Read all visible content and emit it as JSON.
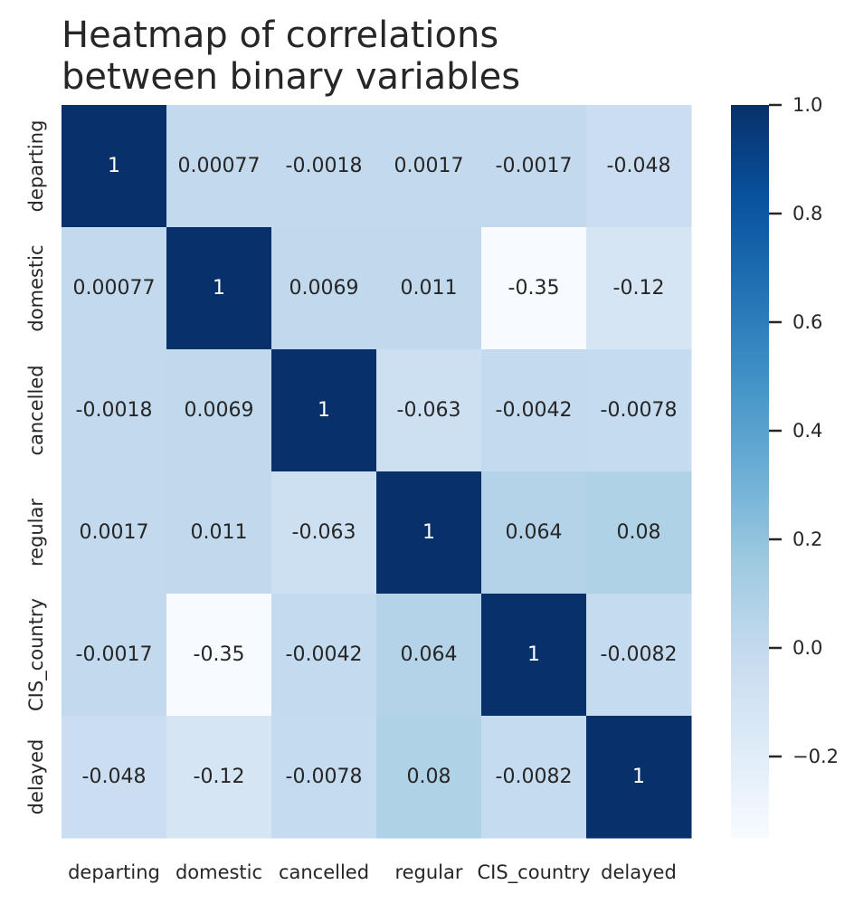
{
  "chart_data": {
    "type": "heatmap",
    "title": "Heatmap of correlations\nbetween binary variables",
    "x_labels": [
      "departing",
      "domestic",
      "cancelled",
      "regular",
      "CIS_country",
      "delayed"
    ],
    "y_labels": [
      "departing",
      "domestic",
      "cancelled",
      "regular",
      "CIS_country",
      "delayed"
    ],
    "values": [
      [
        1,
        0.00077,
        -0.0018,
        0.0017,
        -0.0017,
        -0.048
      ],
      [
        0.00077,
        1,
        0.0069,
        0.011,
        -0.35,
        -0.12
      ],
      [
        -0.0018,
        0.0069,
        1,
        -0.063,
        -0.0042,
        -0.0078
      ],
      [
        0.0017,
        0.011,
        -0.063,
        1,
        0.064,
        0.08
      ],
      [
        -0.0017,
        -0.35,
        -0.0042,
        0.064,
        1,
        -0.0082
      ],
      [
        -0.048,
        -0.12,
        -0.0078,
        0.08,
        -0.0082,
        1
      ]
    ],
    "cell_labels": [
      [
        "1",
        "0.00077",
        "-0.0018",
        "0.0017",
        "-0.0017",
        "-0.048"
      ],
      [
        "0.00077",
        "1",
        "0.0069",
        "0.011",
        "-0.35",
        "-0.12"
      ],
      [
        "-0.0018",
        "0.0069",
        "1",
        "-0.063",
        "-0.0042",
        "-0.0078"
      ],
      [
        "0.0017",
        "0.011",
        "-0.063",
        "1",
        "0.064",
        "0.08"
      ],
      [
        "-0.0017",
        "-0.35",
        "-0.0042",
        "0.064",
        "1",
        "-0.0082"
      ],
      [
        "-0.048",
        "-0.12",
        "-0.0078",
        "0.08",
        "-0.0082",
        "1"
      ]
    ],
    "colorbar": {
      "vmin": -0.35,
      "vmax": 1.0,
      "ticks": [
        1.0,
        0.8,
        0.6,
        0.4,
        0.2,
        0.0,
        -0.2
      ],
      "tick_labels": [
        "1.0",
        "0.8",
        "0.6",
        "0.4",
        "0.2",
        "0.0",
        "−0.2"
      ],
      "colormap": "Blues",
      "stops": [
        "#f7fbff",
        "#deebf7",
        "#c6dbef",
        "#9ecae1",
        "#6baed6",
        "#4292c6",
        "#2171b5",
        "#08519c",
        "#08306b"
      ]
    },
    "xlabel": "",
    "ylabel": "",
    "legend": "colorbar-right"
  }
}
